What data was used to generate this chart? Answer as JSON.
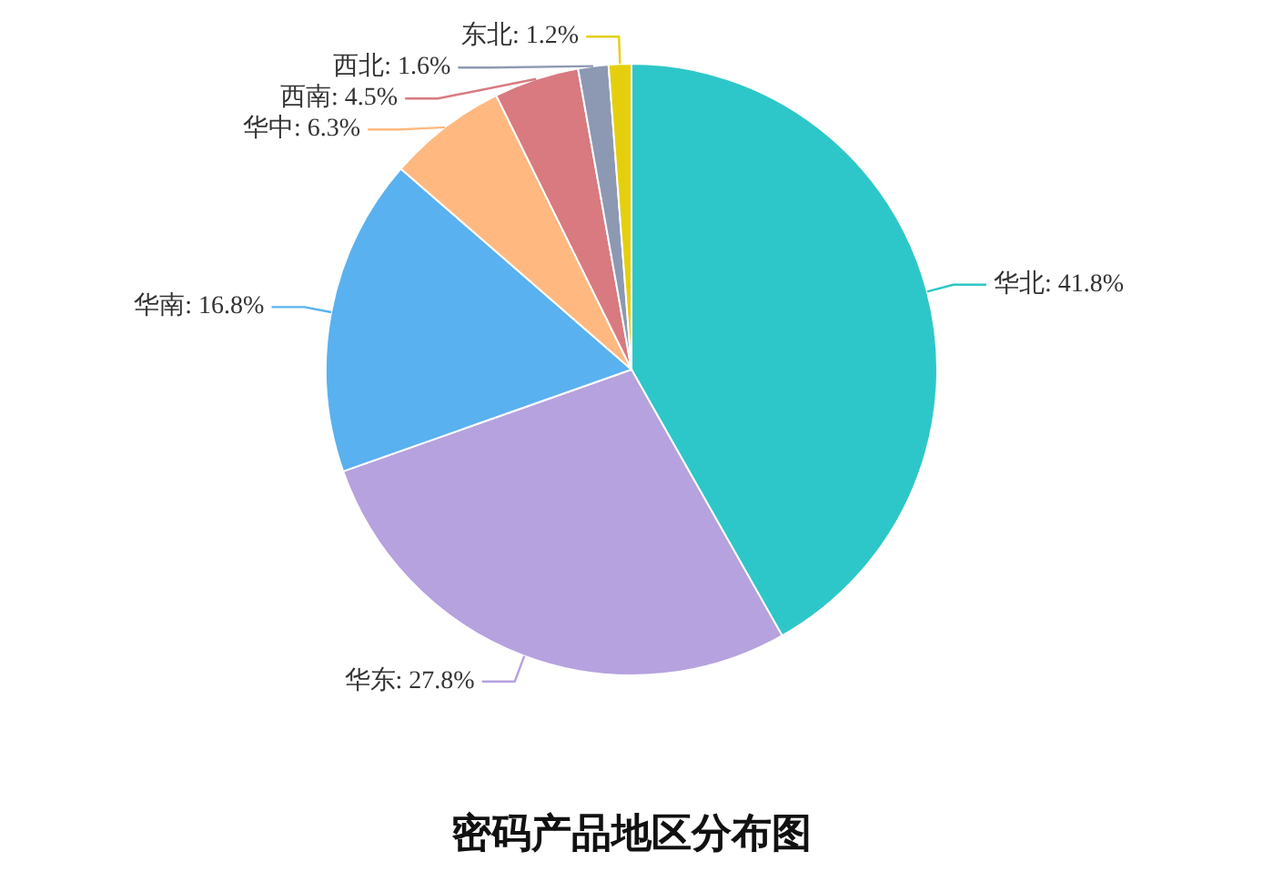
{
  "chart_data": {
    "type": "pie",
    "title": "密码产品地区分布图",
    "categories": [
      "华北",
      "华东",
      "华南",
      "华中",
      "西南",
      "西北",
      "东北"
    ],
    "values": [
      41.8,
      27.8,
      16.8,
      6.3,
      4.5,
      1.6,
      1.2
    ],
    "value_labels": [
      "41.8%",
      "27.8%",
      "16.8%",
      "6.3%",
      "4.5%",
      "1.6%",
      "1.2%"
    ],
    "colors": [
      "#2ec7c9",
      "#b6a2de",
      "#5ab1ef",
      "#ffb980",
      "#d87a80",
      "#8d98b3",
      "#e5cf0d"
    ]
  }
}
